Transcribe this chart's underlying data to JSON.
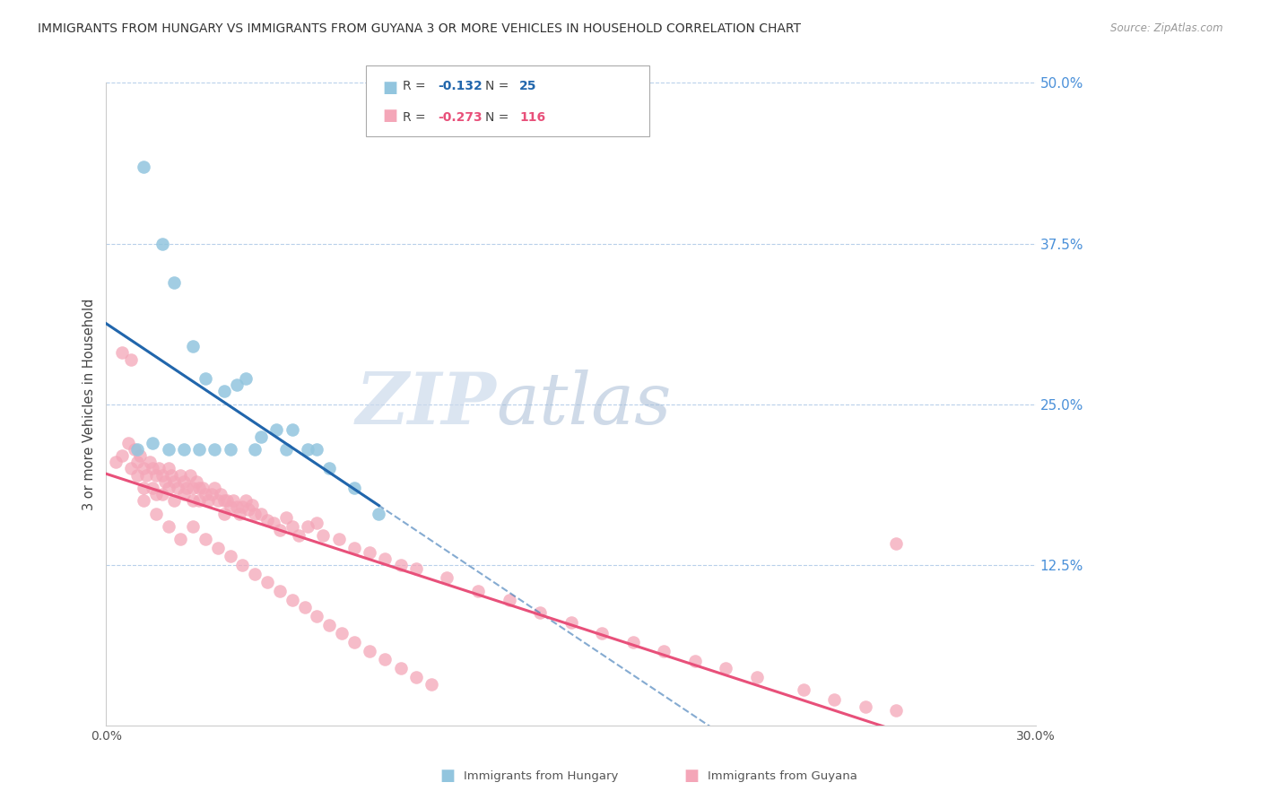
{
  "title": "IMMIGRANTS FROM HUNGARY VS IMMIGRANTS FROM GUYANA 3 OR MORE VEHICLES IN HOUSEHOLD CORRELATION CHART",
  "source": "Source: ZipAtlas.com",
  "ylabel": "3 or more Vehicles in Household",
  "xlim": [
    0.0,
    0.3
  ],
  "ylim": [
    0.0,
    0.5
  ],
  "yticks_right": [
    0.125,
    0.25,
    0.375,
    0.5
  ],
  "ytick_labels_right": [
    "12.5%",
    "25.0%",
    "37.5%",
    "50.0%"
  ],
  "legend_hungary": "Immigrants from Hungary",
  "legend_guyana": "Immigrants from Guyana",
  "R_hungary": -0.132,
  "N_hungary": 25,
  "R_guyana": -0.273,
  "N_guyana": 116,
  "color_hungary": "#92c5de",
  "color_guyana": "#f4a6b8",
  "color_hungary_line": "#2166ac",
  "color_guyana_line": "#e8507a",
  "color_right_axis": "#4a90d9",
  "watermark_zip": "ZIP",
  "watermark_atlas": "atlas",
  "background": "#ffffff",
  "hungary_x": [
    0.012,
    0.018,
    0.022,
    0.028,
    0.032,
    0.038,
    0.042,
    0.045,
    0.05,
    0.055,
    0.06,
    0.065,
    0.068,
    0.072,
    0.08,
    0.088,
    0.01,
    0.015,
    0.02,
    0.025,
    0.03,
    0.035,
    0.048,
    0.058,
    0.04
  ],
  "hungary_y": [
    0.435,
    0.375,
    0.345,
    0.295,
    0.27,
    0.26,
    0.265,
    0.27,
    0.225,
    0.23,
    0.23,
    0.215,
    0.215,
    0.2,
    0.185,
    0.165,
    0.215,
    0.22,
    0.215,
    0.215,
    0.215,
    0.215,
    0.215,
    0.215,
    0.215
  ],
  "guyana_x": [
    0.003,
    0.005,
    0.007,
    0.008,
    0.009,
    0.01,
    0.01,
    0.011,
    0.012,
    0.012,
    0.013,
    0.014,
    0.015,
    0.015,
    0.016,
    0.016,
    0.017,
    0.018,
    0.018,
    0.019,
    0.02,
    0.02,
    0.021,
    0.022,
    0.022,
    0.023,
    0.024,
    0.025,
    0.025,
    0.026,
    0.027,
    0.028,
    0.028,
    0.029,
    0.03,
    0.03,
    0.031,
    0.032,
    0.033,
    0.034,
    0.035,
    0.036,
    0.037,
    0.038,
    0.038,
    0.039,
    0.04,
    0.041,
    0.042,
    0.043,
    0.044,
    0.045,
    0.046,
    0.047,
    0.048,
    0.05,
    0.052,
    0.054,
    0.056,
    0.058,
    0.06,
    0.062,
    0.065,
    0.068,
    0.07,
    0.075,
    0.08,
    0.085,
    0.09,
    0.095,
    0.1,
    0.11,
    0.12,
    0.13,
    0.14,
    0.15,
    0.16,
    0.17,
    0.18,
    0.19,
    0.2,
    0.21,
    0.225,
    0.235,
    0.245,
    0.255,
    0.005,
    0.008,
    0.012,
    0.016,
    0.02,
    0.024,
    0.028,
    0.032,
    0.036,
    0.04,
    0.044,
    0.048,
    0.052,
    0.056,
    0.06,
    0.064,
    0.068,
    0.072,
    0.076,
    0.08,
    0.085,
    0.09,
    0.095,
    0.1,
    0.105,
    0.255
  ],
  "guyana_y": [
    0.205,
    0.21,
    0.22,
    0.2,
    0.215,
    0.205,
    0.195,
    0.21,
    0.2,
    0.185,
    0.195,
    0.205,
    0.2,
    0.185,
    0.195,
    0.18,
    0.2,
    0.195,
    0.18,
    0.19,
    0.2,
    0.185,
    0.195,
    0.19,
    0.175,
    0.185,
    0.195,
    0.19,
    0.18,
    0.185,
    0.195,
    0.185,
    0.175,
    0.19,
    0.185,
    0.175,
    0.185,
    0.18,
    0.175,
    0.18,
    0.185,
    0.175,
    0.18,
    0.175,
    0.165,
    0.175,
    0.17,
    0.175,
    0.17,
    0.165,
    0.17,
    0.175,
    0.168,
    0.172,
    0.165,
    0.165,
    0.16,
    0.158,
    0.152,
    0.162,
    0.155,
    0.148,
    0.155,
    0.158,
    0.148,
    0.145,
    0.138,
    0.135,
    0.13,
    0.125,
    0.122,
    0.115,
    0.105,
    0.098,
    0.088,
    0.08,
    0.072,
    0.065,
    0.058,
    0.05,
    0.045,
    0.038,
    0.028,
    0.02,
    0.015,
    0.012,
    0.29,
    0.285,
    0.175,
    0.165,
    0.155,
    0.145,
    0.155,
    0.145,
    0.138,
    0.132,
    0.125,
    0.118,
    0.112,
    0.105,
    0.098,
    0.092,
    0.085,
    0.078,
    0.072,
    0.065,
    0.058,
    0.052,
    0.045,
    0.038,
    0.032,
    0.142
  ]
}
